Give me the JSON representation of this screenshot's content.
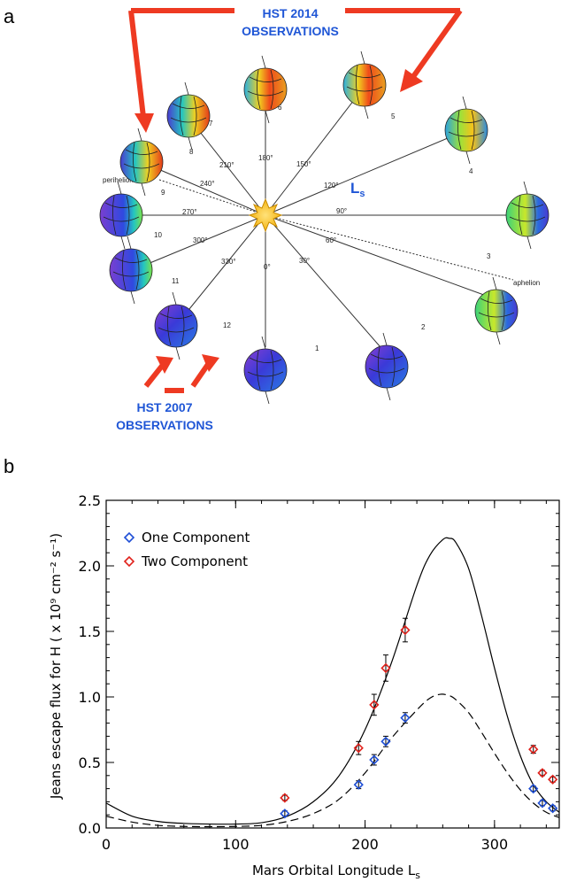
{
  "panel_a": {
    "label": "a",
    "hst_2014": [
      "HST 2014",
      "OBSERVATIONS"
    ],
    "hst_2007": [
      "HST 2007",
      "OBSERVATIONS"
    ],
    "ls_label": "L",
    "ls_sub": "s",
    "perihelion": "perihelion",
    "aphelion": "aphelion",
    "angles": [
      "0°",
      "30°",
      "60°",
      "90°",
      "120°",
      "150°",
      "180°",
      "210°",
      "240°",
      "270°",
      "300°",
      "330°"
    ],
    "positions": [
      "1",
      "2",
      "3",
      "4",
      "5",
      "6",
      "7",
      "8",
      "9",
      "10",
      "11",
      "12"
    ]
  },
  "panel_b": {
    "label": "b"
  },
  "colors": {
    "one_component": "#1f4fd6",
    "two_component": "#e0211b",
    "arrow": "#ee3a22",
    "sun": "#f7c21c"
  },
  "chart_data": {
    "type": "scatter",
    "title": "",
    "xlabel": "Mars Orbital Longitude L",
    "xlabel_sub": "s",
    "ylabel": "Jeans escape flux for H ( x 10⁹ cm⁻² s⁻¹)",
    "xlim": [
      0,
      350
    ],
    "ylim": [
      0,
      2.5
    ],
    "xticks": [
      0,
      100,
      200,
      300
    ],
    "xtick_labels": [
      "0",
      "100",
      "200",
      "300"
    ],
    "yticks": [
      0.0,
      0.5,
      1.0,
      1.5,
      2.0,
      2.5
    ],
    "ytick_labels": [
      "0.0",
      "0.5",
      "1.0",
      "1.5",
      "2.0",
      "2.5"
    ],
    "legend_position": "top-left",
    "series": [
      {
        "name": "One Component",
        "marker": "diamond",
        "x": [
          138,
          195,
          207,
          216,
          231,
          330,
          337,
          345
        ],
        "y": [
          0.11,
          0.33,
          0.52,
          0.66,
          0.84,
          0.3,
          0.19,
          0.15
        ],
        "err": [
          0.02,
          0.03,
          0.04,
          0.04,
          0.04,
          0.02,
          0.02,
          0.02
        ]
      },
      {
        "name": "Two Component",
        "marker": "diamond",
        "x": [
          138,
          195,
          207,
          216,
          231,
          330,
          337,
          345
        ],
        "y": [
          0.23,
          0.61,
          0.94,
          1.22,
          1.51,
          0.6,
          0.42,
          0.37
        ],
        "err": [
          0.02,
          0.05,
          0.08,
          0.1,
          0.09,
          0.03,
          0.02,
          0.02
        ]
      }
    ],
    "model_curves": [
      {
        "style": "solid",
        "x": [
          0,
          20,
          40,
          60,
          80,
          100,
          120,
          140,
          160,
          180,
          200,
          220,
          240,
          250,
          260,
          265,
          270,
          280,
          290,
          300,
          310,
          320,
          330,
          340,
          350
        ],
        "y": [
          0.19,
          0.09,
          0.05,
          0.035,
          0.03,
          0.03,
          0.04,
          0.09,
          0.2,
          0.4,
          0.75,
          1.25,
          1.85,
          2.08,
          2.2,
          2.21,
          2.18,
          1.98,
          1.62,
          1.22,
          0.85,
          0.55,
          0.33,
          0.2,
          0.12
        ]
      },
      {
        "style": "dashed",
        "x": [
          0,
          20,
          40,
          60,
          80,
          100,
          120,
          140,
          160,
          180,
          200,
          220,
          240,
          250,
          258,
          265,
          270,
          280,
          290,
          300,
          310,
          320,
          330,
          340,
          350
        ],
        "y": [
          0.09,
          0.045,
          0.02,
          0.012,
          0.01,
          0.012,
          0.02,
          0.05,
          0.11,
          0.22,
          0.42,
          0.68,
          0.9,
          0.99,
          1.02,
          1.01,
          0.98,
          0.88,
          0.73,
          0.57,
          0.42,
          0.29,
          0.19,
          0.12,
          0.08
        ]
      }
    ]
  }
}
